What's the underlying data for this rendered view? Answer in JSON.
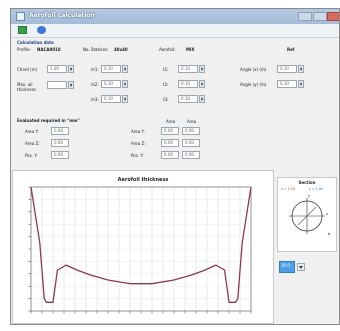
{
  "window": {
    "title": "Aerofoil calculation"
  },
  "toolbar": {
    "icons": [
      "green-save-icon",
      "blue-info-icon"
    ]
  },
  "header": {
    "section_title": "Calculation data",
    "fields": [
      {
        "label": "Profile:",
        "value": "NACA0018"
      },
      {
        "label": "No. Stations:",
        "value": "40x40"
      },
      {
        "label": "Aerofoil:",
        "value": "MIX"
      }
    ],
    "right_value": "Ref"
  },
  "params": {
    "left": [
      {
        "label": "Chord (m)",
        "value": "1.00"
      },
      {
        "label": "Max. oil thickness",
        "value": ""
      }
    ],
    "col2": [
      {
        "label": "m1:",
        "value": "0.10"
      },
      {
        "label": "m2:",
        "value": "0.10"
      },
      {
        "label": "m3:",
        "value": "0.10"
      }
    ],
    "col3": [
      {
        "label": "t1:",
        "value": "0.10"
      },
      {
        "label": "t2:",
        "value": "0.10"
      },
      {
        "label": "t3:",
        "value": "0.10"
      }
    ],
    "col4": [
      {
        "label": "Angle (x) (m)",
        "value": "0.10"
      },
      {
        "label": "Angle (y) (m)",
        "value": "0.10"
      }
    ]
  },
  "results": {
    "title": "Evaluated required in \"mm\"",
    "left": [
      {
        "label": "Area Y:",
        "value": "0.00"
      },
      {
        "label": "Area Z:",
        "value": "0.00"
      },
      {
        "label": "Pos. Y:",
        "value": "0.00"
      }
    ],
    "right_headers": [
      "Area",
      "Area"
    ],
    "right": [
      {
        "label": "Area Y:",
        "values": [
          "0.00",
          "0.00"
        ]
      },
      {
        "label": "Area Z:",
        "values": [
          "0.00",
          "0.00"
        ]
      },
      {
        "label": "Pos. Y:",
        "values": [
          "0.00",
          "0.00"
        ]
      }
    ]
  },
  "plot": {
    "title": "Aerofoil thickness"
  },
  "chart_data": {
    "type": "line",
    "title": "Aerofoil thickness",
    "x": [
      0,
      0.04,
      0.06,
      0.07,
      0.1,
      0.12,
      0.16,
      0.21,
      0.27,
      0.35,
      0.45,
      0.55,
      0.65,
      0.73,
      0.79,
      0.84,
      0.88,
      0.9,
      0.93,
      0.94,
      0.96,
      1.0
    ],
    "series": [
      {
        "color": "#8b3a4a",
        "values": [
          1.0,
          0.55,
          0.1,
          0.07,
          0.07,
          0.33,
          0.37,
          0.33,
          0.29,
          0.25,
          0.22,
          0.22,
          0.25,
          0.29,
          0.33,
          0.37,
          0.33,
          0.07,
          0.07,
          0.1,
          0.55,
          1.0
        ]
      }
    ],
    "ylim": [
      0,
      1
    ],
    "xlim": [
      0,
      1
    ],
    "grid": true
  },
  "section": {
    "title": "Section",
    "legend": [
      "x = 1.00",
      "y = 1.00"
    ],
    "labels": [
      "x",
      "y",
      "b"
    ]
  },
  "select": {
    "value": "30.0"
  }
}
